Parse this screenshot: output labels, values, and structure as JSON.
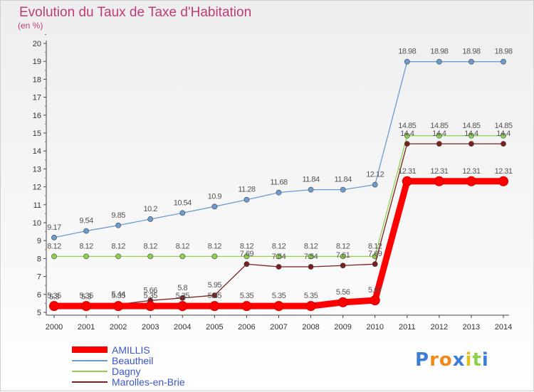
{
  "chart_data": {
    "type": "line",
    "title": "Evolution du Taux de Taxe d'Habitation",
    "subtitle": "(en %)",
    "x": [
      "2000",
      "2001",
      "2002",
      "2003",
      "2004",
      "2005",
      "2006",
      "2007",
      "2008",
      "2009",
      "2010",
      "2011",
      "2012",
      "2013",
      "2014"
    ],
    "ylim": [
      5,
      20
    ],
    "yticks": [
      5,
      6,
      7,
      8,
      9,
      10,
      11,
      12,
      13,
      14,
      15,
      16,
      17,
      18,
      19,
      20
    ],
    "grid": false,
    "legend_position": "bottom-left",
    "series": [
      {
        "name": "AMILLIS",
        "color": "#ff0000",
        "emphasis": true,
        "values": [
          5.35,
          5.35,
          5.35,
          5.35,
          5.35,
          5.35,
          5.35,
          5.35,
          5.35,
          5.56,
          5.67,
          12.31,
          12.31,
          12.31,
          12.31
        ],
        "labels": [
          "5.35",
          "5.35",
          "5.35",
          "5.35",
          "5.35",
          "5.35",
          "5.35",
          "5.35",
          "5.35",
          "5.56",
          "5.67",
          "12.31",
          "12.31",
          "12.31",
          "12.31"
        ]
      },
      {
        "name": "Beautheil",
        "color": "#6b9bd1",
        "values": [
          9.17,
          9.54,
          9.85,
          10.2,
          10.54,
          10.9,
          11.28,
          11.68,
          11.84,
          11.84,
          12.12,
          18.98,
          18.98,
          18.98,
          18.98
        ],
        "labels": [
          "9.17",
          "9.54",
          "9.85",
          "10.2",
          "10.54",
          "10.9",
          "11.28",
          "11.68",
          "11.84",
          "11.84",
          "12.12",
          "18.98",
          "18.98",
          "18.98",
          "18.98"
        ]
      },
      {
        "name": "Dagny",
        "color": "#8fd14f",
        "values": [
          8.12,
          8.12,
          8.12,
          8.12,
          8.12,
          8.12,
          8.12,
          8.12,
          8.12,
          8.12,
          8.12,
          14.85,
          14.85,
          14.85,
          14.85
        ],
        "labels": [
          "8.12",
          "8.12",
          "8.12",
          "8.12",
          "8.12",
          "8.12",
          "8.12",
          "8.12",
          "8.12",
          "8.12",
          "8.12",
          "14.85",
          "14.85",
          "14.85",
          "14.85"
        ]
      },
      {
        "name": "Marolles-en-Brie",
        "color": "#7a1f1f",
        "values": [
          5.3,
          5.3,
          5.44,
          5.66,
          5.8,
          5.95,
          7.69,
          7.54,
          7.54,
          7.61,
          7.69,
          14.4,
          14.4,
          14.4,
          14.4
        ],
        "labels": [
          "5.3",
          "5.3",
          "5.44",
          "5.66",
          "5.8",
          "5.95",
          "7.69",
          "7.54",
          "7.54",
          "7.61",
          "7.69",
          "14.4",
          "14.4",
          "14.4",
          "14.4"
        ]
      }
    ]
  },
  "logo": {
    "letters": [
      "P",
      "r",
      "o",
      "x",
      "i",
      "t",
      "i"
    ],
    "colors": [
      "#3b7dd8",
      "#f08a1c",
      "#f08a1c",
      "#3b7dd8",
      "#e0c020",
      "#8fd14f",
      "#3b7dd8"
    ]
  }
}
